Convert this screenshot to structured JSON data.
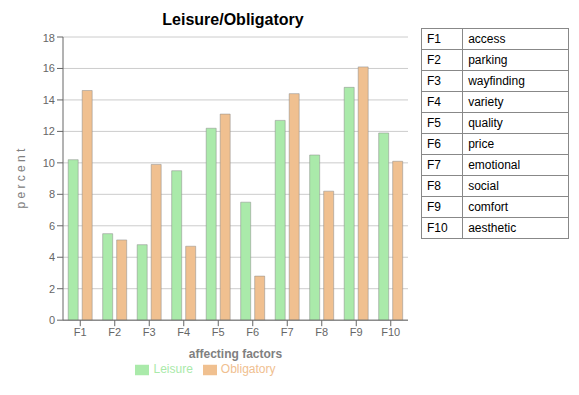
{
  "chart_data": {
    "type": "bar",
    "title": "Leisure/Obligatory",
    "categories": [
      "F1",
      "F2",
      "F3",
      "F4",
      "F5",
      "F6",
      "F7",
      "F8",
      "F9",
      "F10"
    ],
    "series": [
      {
        "name": "Leisure",
        "color": "#aaeaaa",
        "values": [
          10.2,
          5.5,
          4.8,
          9.5,
          12.2,
          7.5,
          12.7,
          10.5,
          14.8,
          11.9
        ]
      },
      {
        "name": "Obligatory",
        "color": "#f0c090",
        "values": [
          14.6,
          5.1,
          9.9,
          4.7,
          13.1,
          2.8,
          14.4,
          8.2,
          16.1,
          10.1
        ]
      }
    ],
    "xlabel": "affecting factors",
    "ylabel": "p e r c e n t",
    "ylim": [
      0,
      18
    ],
    "yticks": [
      0,
      2,
      4,
      6,
      8,
      10,
      12,
      14,
      16,
      18
    ],
    "grid": true,
    "legend": "bottom",
    "table": [
      [
        "F1",
        "access"
      ],
      [
        "F2",
        "parking"
      ],
      [
        "F3",
        "wayfinding"
      ],
      [
        "F4",
        "variety"
      ],
      [
        "F5",
        "quality"
      ],
      [
        "F6",
        "price"
      ],
      [
        "F7",
        "emotional"
      ],
      [
        "F8",
        "social"
      ],
      [
        "F9",
        "comfort"
      ],
      [
        "F10",
        "aesthetic"
      ]
    ]
  }
}
